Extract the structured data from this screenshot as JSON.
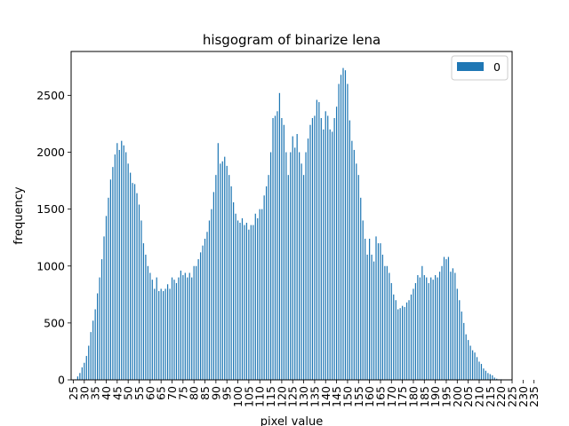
{
  "chart_data": {
    "type": "bar",
    "title": "hisgogram of binarize lena",
    "xlabel": "pixel value",
    "ylabel": "frequency",
    "x_start": 25,
    "x_end": 236,
    "x_tick_labels": [
      "25",
      "30",
      "35",
      "40",
      "45",
      "50",
      "55",
      "60",
      "65",
      "70",
      "75",
      "80",
      "85",
      "90",
      "95",
      "100",
      "105",
      "110",
      "115",
      "120",
      "125",
      "130",
      "135",
      "140",
      "145",
      "150",
      "155",
      "160",
      "165",
      "170",
      "175",
      "180",
      "185",
      "190",
      "195",
      "200",
      "205",
      "210",
      "215",
      "220",
      "225",
      "230",
      "235"
    ],
    "y_ticks": [
      0,
      500,
      1000,
      1500,
      2000,
      2500
    ],
    "y_tick_labels": [
      "0",
      "500",
      "1000",
      "1500",
      "2000",
      "2500"
    ],
    "ylim": [
      0,
      2885
    ],
    "grid": false,
    "legend_position": "top-right",
    "series": [
      {
        "name": "0",
        "color": "#1f77b4",
        "values": [
          0,
          5,
          30,
          60,
          110,
          150,
          210,
          300,
          420,
          520,
          620,
          760,
          900,
          1060,
          1260,
          1440,
          1600,
          1760,
          1870,
          1980,
          2080,
          2020,
          2100,
          2060,
          2000,
          1900,
          1820,
          1730,
          1720,
          1640,
          1540,
          1400,
          1200,
          1100,
          1000,
          940,
          880,
          800,
          900,
          780,
          800,
          780,
          800,
          840,
          800,
          900,
          880,
          850,
          900,
          960,
          920,
          940,
          900,
          940,
          900,
          1000,
          1000,
          1060,
          1120,
          1180,
          1240,
          1300,
          1400,
          1500,
          1650,
          1800,
          2080,
          1900,
          1920,
          1960,
          1880,
          1800,
          1700,
          1560,
          1460,
          1400,
          1380,
          1420,
          1360,
          1380,
          1320,
          1360,
          1360,
          1460,
          1420,
          1500,
          1500,
          1620,
          1700,
          1800,
          2000,
          2300,
          2320,
          2360,
          2520,
          2300,
          2240,
          2000,
          1800,
          2000,
          2140,
          2040,
          2160,
          2000,
          1900,
          1800,
          2000,
          2120,
          2240,
          2300,
          2320,
          2460,
          2440,
          2300,
          2200,
          2360,
          2320,
          2200,
          2180,
          2300,
          2400,
          2600,
          2680,
          2740,
          2720,
          2600,
          2280,
          2100,
          2020,
          1900,
          1800,
          1600,
          1400,
          1240,
          1100,
          1240,
          1100,
          1040,
          1260,
          1200,
          1200,
          1100,
          1000,
          1000,
          940,
          850,
          750,
          700,
          620,
          630,
          650,
          640,
          680,
          700,
          750,
          800,
          850,
          920,
          900,
          1000,
          920,
          900,
          850,
          900,
          880,
          920,
          900,
          950,
          1000,
          1080,
          1060,
          1080,
          950,
          980,
          940,
          800,
          700,
          600,
          500,
          400,
          350,
          300,
          260,
          240,
          200,
          160,
          140,
          100,
          80,
          60,
          50,
          40,
          20,
          10,
          5,
          5,
          3,
          2,
          1,
          1
        ]
      }
    ]
  }
}
